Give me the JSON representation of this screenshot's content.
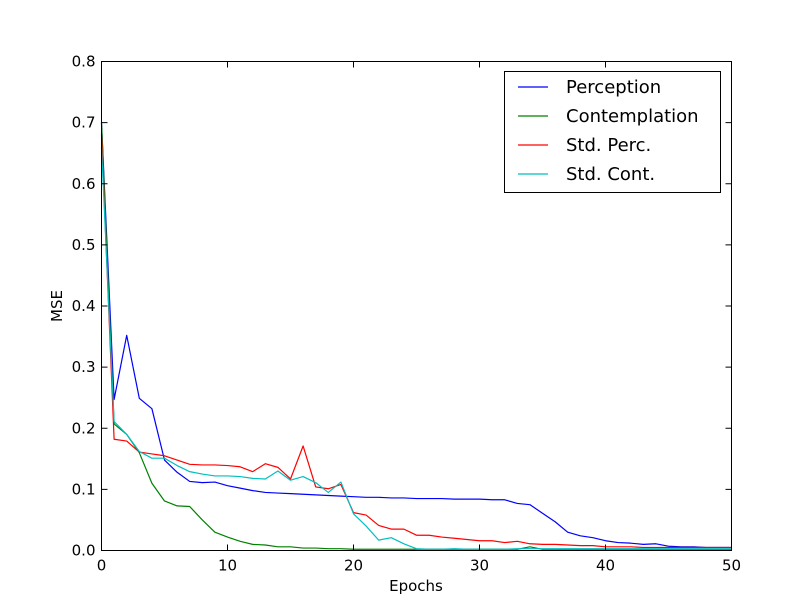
{
  "chart_data": {
    "type": "line",
    "title": "",
    "xlabel": "Epochs",
    "ylabel": "MSE",
    "xlim": [
      0,
      50
    ],
    "ylim": [
      0,
      0.8
    ],
    "xticks": [
      0,
      10,
      20,
      30,
      40,
      50
    ],
    "yticks": [
      0.0,
      0.1,
      0.2,
      0.3,
      0.4,
      0.5,
      0.6,
      0.7,
      0.8
    ],
    "xtick_labels": [
      "0",
      "10",
      "20",
      "30",
      "40",
      "50"
    ],
    "ytick_labels": [
      "0.0",
      "0.1",
      "0.2",
      "0.3",
      "0.4",
      "0.5",
      "0.6",
      "0.7",
      "0.8"
    ],
    "grid": false,
    "legend_position": "top-right",
    "x": [
      0,
      1,
      2,
      3,
      4,
      5,
      6,
      7,
      8,
      9,
      10,
      11,
      12,
      13,
      14,
      15,
      16,
      17,
      18,
      19,
      20,
      21,
      22,
      23,
      24,
      25,
      26,
      27,
      28,
      29,
      30,
      31,
      32,
      33,
      34,
      35,
      36,
      37,
      38,
      39,
      40,
      41,
      42,
      43,
      44,
      45,
      46,
      47,
      48,
      49,
      50
    ],
    "series": [
      {
        "name": "Perception",
        "color": "#0000ff",
        "values": [
          0.7,
          0.247,
          0.352,
          0.249,
          0.232,
          0.148,
          0.128,
          0.113,
          0.111,
          0.112,
          0.106,
          0.102,
          0.098,
          0.095,
          0.094,
          0.093,
          0.092,
          0.091,
          0.09,
          0.089,
          0.088,
          0.087,
          0.087,
          0.086,
          0.086,
          0.085,
          0.085,
          0.085,
          0.084,
          0.084,
          0.084,
          0.083,
          0.083,
          0.077,
          0.075,
          0.061,
          0.047,
          0.03,
          0.024,
          0.021,
          0.016,
          0.013,
          0.012,
          0.01,
          0.011,
          0.007,
          0.006,
          0.006,
          0.005,
          0.005,
          0.005
        ]
      },
      {
        "name": "Contemplation",
        "color": "#008000",
        "values": [
          0.7,
          0.207,
          0.19,
          0.16,
          0.11,
          0.081,
          0.073,
          0.072,
          0.05,
          0.03,
          0.022,
          0.015,
          0.01,
          0.009,
          0.006,
          0.006,
          0.004,
          0.004,
          0.003,
          0.003,
          0.002,
          0.002,
          0.002,
          0.002,
          0.002,
          0.002,
          0.002,
          0.002,
          0.002,
          0.002,
          0.002,
          0.002,
          0.002,
          0.002,
          0.006,
          0.002,
          0.002,
          0.002,
          0.002,
          0.002,
          0.002,
          0.002,
          0.002,
          0.002,
          0.002,
          0.002,
          0.002,
          0.002,
          0.002,
          0.002,
          0.002
        ]
      },
      {
        "name": "Std. Perc.",
        "color": "#ff0000",
        "values": [
          0.68,
          0.182,
          0.179,
          0.161,
          0.158,
          0.155,
          0.148,
          0.141,
          0.14,
          0.14,
          0.139,
          0.137,
          0.129,
          0.142,
          0.136,
          0.117,
          0.171,
          0.104,
          0.101,
          0.108,
          0.062,
          0.058,
          0.041,
          0.035,
          0.035,
          0.025,
          0.025,
          0.022,
          0.02,
          0.018,
          0.016,
          0.016,
          0.013,
          0.015,
          0.011,
          0.01,
          0.01,
          0.009,
          0.008,
          0.008,
          0.006,
          0.006,
          0.006,
          0.005,
          0.005,
          0.005,
          0.005,
          0.005,
          0.005,
          0.005,
          0.005
        ]
      },
      {
        "name": "Std. Cont.",
        "color": "#00bfbf",
        "values": [
          0.66,
          0.211,
          0.19,
          0.162,
          0.151,
          0.151,
          0.139,
          0.129,
          0.125,
          0.122,
          0.122,
          0.121,
          0.118,
          0.117,
          0.13,
          0.115,
          0.121,
          0.111,
          0.095,
          0.112,
          0.06,
          0.04,
          0.017,
          0.021,
          0.011,
          0.003,
          0.002,
          0.002,
          0.003,
          0.002,
          0.002,
          0.002,
          0.002,
          0.003,
          0.003,
          0.003,
          0.003,
          0.003,
          0.003,
          0.003,
          0.003,
          0.003,
          0.003,
          0.003,
          0.003,
          0.003,
          0.003,
          0.003,
          0.003,
          0.003,
          0.003
        ]
      }
    ]
  }
}
